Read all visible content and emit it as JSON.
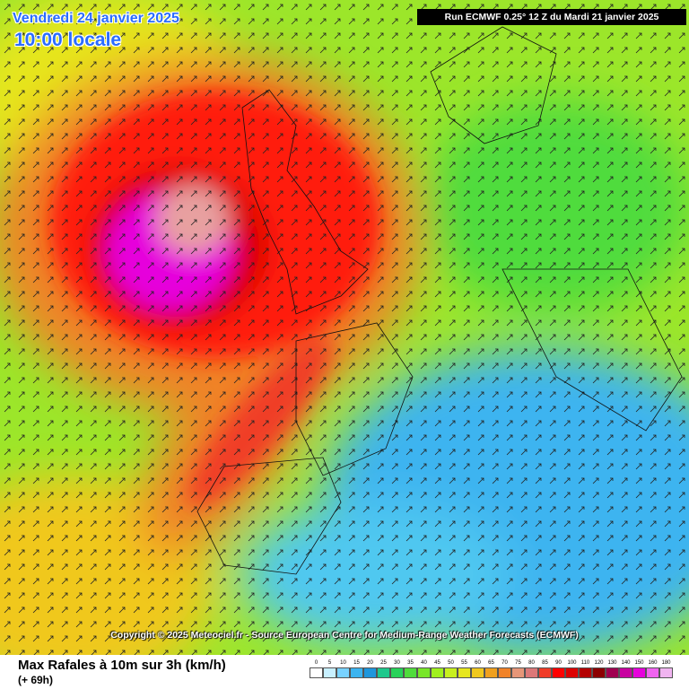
{
  "header": {
    "date": "Vendredi 24 janvier 2025",
    "time": "10:00 locale",
    "run": "Run ECMWF 0.25° 12 Z du Mardi 21 janvier 2025"
  },
  "copyright": "Copyright © 2025 Meteociel.fr - Source European Centre for Medium-Range Weather Forecasts (ECMWF)",
  "footer": {
    "title": "Max Rafales à 10m sur 3h (km/h)",
    "lead": "(+ 69h)"
  },
  "legend": {
    "items": [
      {
        "label": "0",
        "color": "#ffffff"
      },
      {
        "label": "5",
        "color": "#c8f0ff"
      },
      {
        "label": "10",
        "color": "#78d2ff"
      },
      {
        "label": "15",
        "color": "#3cb4f0"
      },
      {
        "label": "20",
        "color": "#1e96dc"
      },
      {
        "label": "25",
        "color": "#1ec88c"
      },
      {
        "label": "30",
        "color": "#28d25a"
      },
      {
        "label": "35",
        "color": "#50dc3c"
      },
      {
        "label": "40",
        "color": "#78e628"
      },
      {
        "label": "45",
        "color": "#a0f01e"
      },
      {
        "label": "50",
        "color": "#c8f01e"
      },
      {
        "label": "55",
        "color": "#e6e61e"
      },
      {
        "label": "60",
        "color": "#f0c81e"
      },
      {
        "label": "65",
        "color": "#f0a01e"
      },
      {
        "label": "70",
        "color": "#f08228"
      },
      {
        "label": "75",
        "color": "#e69678"
      },
      {
        "label": "80",
        "color": "#dc7878"
      },
      {
        "label": "85",
        "color": "#f03c28"
      },
      {
        "label": "90",
        "color": "#ff0000"
      },
      {
        "label": "100",
        "color": "#dc0000"
      },
      {
        "label": "110",
        "color": "#b40000"
      },
      {
        "label": "120",
        "color": "#8c0000"
      },
      {
        "label": "130",
        "color": "#a00050"
      },
      {
        "label": "140",
        "color": "#c800a0"
      },
      {
        "label": "150",
        "color": "#e600dc"
      },
      {
        "label": "160",
        "color": "#f064f0"
      },
      {
        "label": "180",
        "color": "#f0b4f0"
      }
    ]
  }
}
